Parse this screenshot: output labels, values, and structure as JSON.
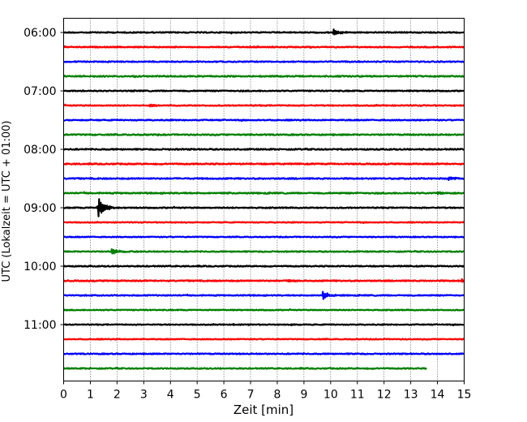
{
  "chart_data": {
    "type": "line",
    "title": "",
    "xlabel": "Zeit  [min]",
    "ylabel": "UTC (Lokalzeit = UTC + 01:00)",
    "xlim": [
      0,
      15
    ],
    "xticks": [
      "0",
      "1",
      "2",
      "3",
      "4",
      "5",
      "6",
      "7",
      "8",
      "9",
      "10",
      "11",
      "12",
      "13",
      "14",
      "15"
    ],
    "yticks": [
      "06:00",
      "07:00",
      "08:00",
      "09:00",
      "10:00",
      "11:00"
    ],
    "grid": "vertical dotted at each minute",
    "traces_per_hour": 4,
    "trace_interval_min": 15,
    "color_cycle": [
      "#000000",
      "#ff0000",
      "#0000ff",
      "#008000"
    ],
    "traces": [
      {
        "start": "06:00",
        "color": "#000000",
        "noise": 0.6,
        "events": [
          {
            "t": 10.1,
            "amp": 4.0
          }
        ]
      },
      {
        "start": "06:15",
        "color": "#ff0000",
        "noise": 0.6,
        "events": []
      },
      {
        "start": "06:30",
        "color": "#0000ff",
        "noise": 0.6,
        "events": []
      },
      {
        "start": "06:45",
        "color": "#008000",
        "noise": 0.7,
        "events": []
      },
      {
        "start": "07:00",
        "color": "#000000",
        "noise": 0.6,
        "events": []
      },
      {
        "start": "07:15",
        "color": "#ff0000",
        "noise": 0.6,
        "events": [
          {
            "t": 3.2,
            "amp": 1.5
          }
        ]
      },
      {
        "start": "07:30",
        "color": "#0000ff",
        "noise": 0.6,
        "events": []
      },
      {
        "start": "07:45",
        "color": "#008000",
        "noise": 0.7,
        "events": []
      },
      {
        "start": "08:00",
        "color": "#000000",
        "noise": 0.7,
        "events": []
      },
      {
        "start": "08:15",
        "color": "#ff0000",
        "noise": 0.7,
        "events": []
      },
      {
        "start": "08:30",
        "color": "#0000ff",
        "noise": 0.7,
        "events": [
          {
            "t": 14.4,
            "amp": 2.5
          }
        ]
      },
      {
        "start": "08:45",
        "color": "#008000",
        "noise": 0.7,
        "events": [
          {
            "t": 14.0,
            "amp": 2.0
          }
        ]
      },
      {
        "start": "09:00",
        "color": "#000000",
        "noise": 0.6,
        "events": [
          {
            "t": 1.3,
            "amp": 14.0
          }
        ]
      },
      {
        "start": "09:15",
        "color": "#ff0000",
        "noise": 0.5,
        "events": []
      },
      {
        "start": "09:30",
        "color": "#0000ff",
        "noise": 0.5,
        "events": []
      },
      {
        "start": "09:45",
        "color": "#008000",
        "noise": 0.6,
        "events": [
          {
            "t": 1.8,
            "amp": 4.0
          }
        ]
      },
      {
        "start": "10:00",
        "color": "#000000",
        "noise": 0.6,
        "events": []
      },
      {
        "start": "10:15",
        "color": "#ff0000",
        "noise": 0.7,
        "events": [
          {
            "t": 8.4,
            "amp": 1.5
          },
          {
            "t": 14.9,
            "amp": 3.0
          }
        ]
      },
      {
        "start": "10:30",
        "color": "#0000ff",
        "noise": 0.6,
        "events": [
          {
            "t": 9.7,
            "amp": 5.0
          }
        ]
      },
      {
        "start": "10:45",
        "color": "#008000",
        "noise": 0.5,
        "events": []
      },
      {
        "start": "11:00",
        "color": "#000000",
        "noise": 0.5,
        "events": [
          {
            "t": 6.3,
            "amp": 1.2
          },
          {
            "t": 8.5,
            "amp": 1.2
          }
        ]
      },
      {
        "start": "11:15",
        "color": "#ff0000",
        "noise": 0.5,
        "events": []
      },
      {
        "start": "11:30",
        "color": "#0000ff",
        "noise": 0.6,
        "events": []
      },
      {
        "start": "11:45",
        "color": "#008000",
        "noise": 0.6,
        "end": 13.6,
        "events": []
      }
    ]
  }
}
